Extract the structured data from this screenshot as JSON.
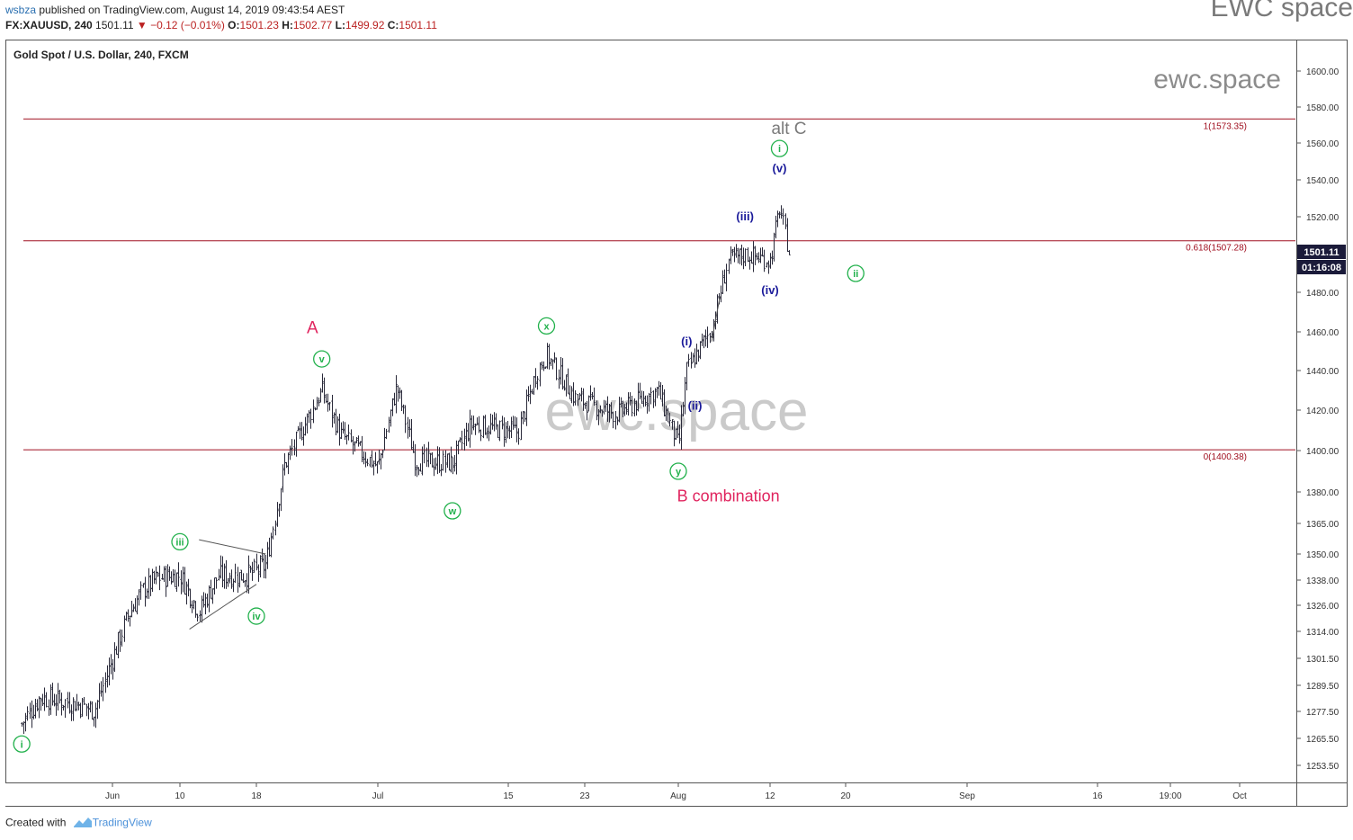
{
  "header": {
    "publisher": "wsbza",
    "published_text": "published on TradingView.com, August 14, 2019 09:43:54 AEST",
    "symbol_line": {
      "symbol": "FX:XAUUSD, 240",
      "last": "1501.11",
      "change": "▼ −0.12 (−0.01%)",
      "o_label": "O:",
      "o_value": "1501.23",
      "h_label": "H:",
      "h_value": "1502.77",
      "l_label": "L:",
      "l_value": "1499.92",
      "c_label": "C:",
      "c_value": "1501.11"
    }
  },
  "brand_watermark": "EWC space",
  "footer": {
    "created_with": "Created with",
    "brand": "TradingView"
  },
  "chart_data": {
    "type": "ohlc",
    "title": "Gold Spot / U.S. Dollar, 240, FXCM",
    "price_axis_ticks": [
      "1600.00",
      "1580.00",
      "1560.00",
      "1540.00",
      "1520.00",
      "1480.00",
      "1460.00",
      "1440.00",
      "1420.00",
      "1400.00",
      "1380.00",
      "1365.00",
      "1350.00",
      "1338.00",
      "1326.00",
      "1314.00",
      "1301.50",
      "1289.50",
      "1277.50",
      "1265.50",
      "1253.50"
    ],
    "time_axis_ticks": [
      "Jun",
      "10",
      "18",
      "Jul",
      "15",
      "23",
      "Aug",
      "12",
      "20",
      "Sep",
      "16",
      "19:00",
      "Oct"
    ],
    "last_price_label": "1501.11",
    "countdown_label": "01:16:08",
    "colors": {
      "bars": "#2a2a3a",
      "fib_lines": "#a01020",
      "green_labels": "#22b14c",
      "blue_labels": "#1a1a9a",
      "red_labels": "#e0245e",
      "grey_labels": "#7a7a7a",
      "price_tag_bg": "#1b1b3a"
    },
    "fib_levels": [
      {
        "price": 1573.35,
        "label": "1(1573.35)"
      },
      {
        "price": 1507.28,
        "label": "0.618(1507.28)"
      },
      {
        "price": 1400.38,
        "label": "0(1400.38)"
      }
    ],
    "price_path_anchors": [
      {
        "date": "2019-05-22",
        "price": 1272
      },
      {
        "date": "2019-05-24",
        "price": 1284
      },
      {
        "date": "2019-05-28",
        "price": 1281
      },
      {
        "date": "2019-05-30",
        "price": 1278
      },
      {
        "date": "2019-06-03",
        "price": 1321
      },
      {
        "date": "2019-06-05",
        "price": 1333
      },
      {
        "date": "2019-06-07",
        "price": 1339
      },
      {
        "date": "2019-06-10",
        "price": 1340
      },
      {
        "date": "2019-06-12",
        "price": 1323
      },
      {
        "date": "2019-06-14",
        "price": 1340
      },
      {
        "date": "2019-06-17",
        "price": 1340
      },
      {
        "date": "2019-06-19",
        "price": 1345
      },
      {
        "date": "2019-06-21",
        "price": 1393
      },
      {
        "date": "2019-06-25",
        "price": 1430
      },
      {
        "date": "2019-06-27",
        "price": 1408
      },
      {
        "date": "2019-07-01",
        "price": 1392
      },
      {
        "date": "2019-07-03",
        "price": 1432
      },
      {
        "date": "2019-07-05",
        "price": 1395
      },
      {
        "date": "2019-07-09",
        "price": 1394
      },
      {
        "date": "2019-07-11",
        "price": 1413
      },
      {
        "date": "2019-07-16",
        "price": 1409
      },
      {
        "date": "2019-07-18",
        "price": 1440
      },
      {
        "date": "2019-07-19",
        "price": 1448
      },
      {
        "date": "2019-07-22",
        "price": 1426
      },
      {
        "date": "2019-07-26",
        "price": 1418
      },
      {
        "date": "2019-07-30",
        "price": 1430
      },
      {
        "date": "2019-08-01",
        "price": 1402
      },
      {
        "date": "2019-08-02",
        "price": 1440
      },
      {
        "date": "2019-08-05",
        "price": 1462
      },
      {
        "date": "2019-08-07",
        "price": 1497
      },
      {
        "date": "2019-08-09",
        "price": 1500
      },
      {
        "date": "2019-08-12",
        "price": 1497
      },
      {
        "date": "2019-08-13",
        "price": 1525
      },
      {
        "date": "2019-08-14",
        "price": 1501
      }
    ],
    "wave_labels": [
      {
        "text": "i",
        "date": "2019-05-22",
        "price": 1263,
        "style": "green-circle"
      },
      {
        "text": "iii",
        "date": "2019-06-10",
        "price": 1356,
        "style": "green-circle"
      },
      {
        "text": "iv",
        "date": "2019-06-18",
        "price": 1321,
        "style": "green-circle"
      },
      {
        "text": "v",
        "date": "2019-06-25",
        "price": 1446,
        "style": "green-circle"
      },
      {
        "text": "A",
        "date": "2019-06-24",
        "price": 1462,
        "style": "red-letter"
      },
      {
        "text": "w",
        "date": "2019-07-09",
        "price": 1371,
        "style": "green-circle"
      },
      {
        "text": "x",
        "date": "2019-07-19",
        "price": 1463,
        "style": "green-circle"
      },
      {
        "text": "y",
        "date": "2019-08-01",
        "price": 1390,
        "style": "green-circle"
      },
      {
        "text": "B combination",
        "date": "2019-08-07",
        "price": 1378,
        "style": "red-text"
      },
      {
        "text": "(i)",
        "date": "2019-08-02",
        "price": 1455,
        "style": "blue-text"
      },
      {
        "text": "(ii)",
        "date": "2019-08-03",
        "price": 1422,
        "style": "blue-text"
      },
      {
        "text": "(iii)",
        "date": "2019-08-09",
        "price": 1520,
        "style": "blue-text"
      },
      {
        "text": "(iv)",
        "date": "2019-08-12",
        "price": 1481,
        "style": "blue-text"
      },
      {
        "text": "(v)",
        "date": "2019-08-13",
        "price": 1546,
        "style": "blue-text"
      },
      {
        "text": "i",
        "date": "2019-08-13",
        "price": 1557,
        "style": "green-circle"
      },
      {
        "text": "alt C",
        "date": "2019-08-14",
        "price": 1568,
        "style": "grey-text"
      },
      {
        "text": "ii",
        "date": "2019-08-21",
        "price": 1490,
        "style": "green-circle"
      }
    ],
    "triangle_lines": [
      {
        "from": {
          "date": "2019-06-12",
          "price": 1357
        },
        "to": {
          "date": "2019-06-19",
          "price": 1350
        }
      },
      {
        "from": {
          "date": "2019-06-11",
          "price": 1315
        },
        "to": {
          "date": "2019-06-18",
          "price": 1336
        }
      }
    ],
    "trend_lines": [
      {
        "from": {
          "date": "2019-08-05",
          "price": 1455
        },
        "to": {
          "date": "2019-08-06",
          "price": 1478
        }
      }
    ],
    "watermarks": [
      "ewc.space",
      "ewc.space"
    ]
  }
}
